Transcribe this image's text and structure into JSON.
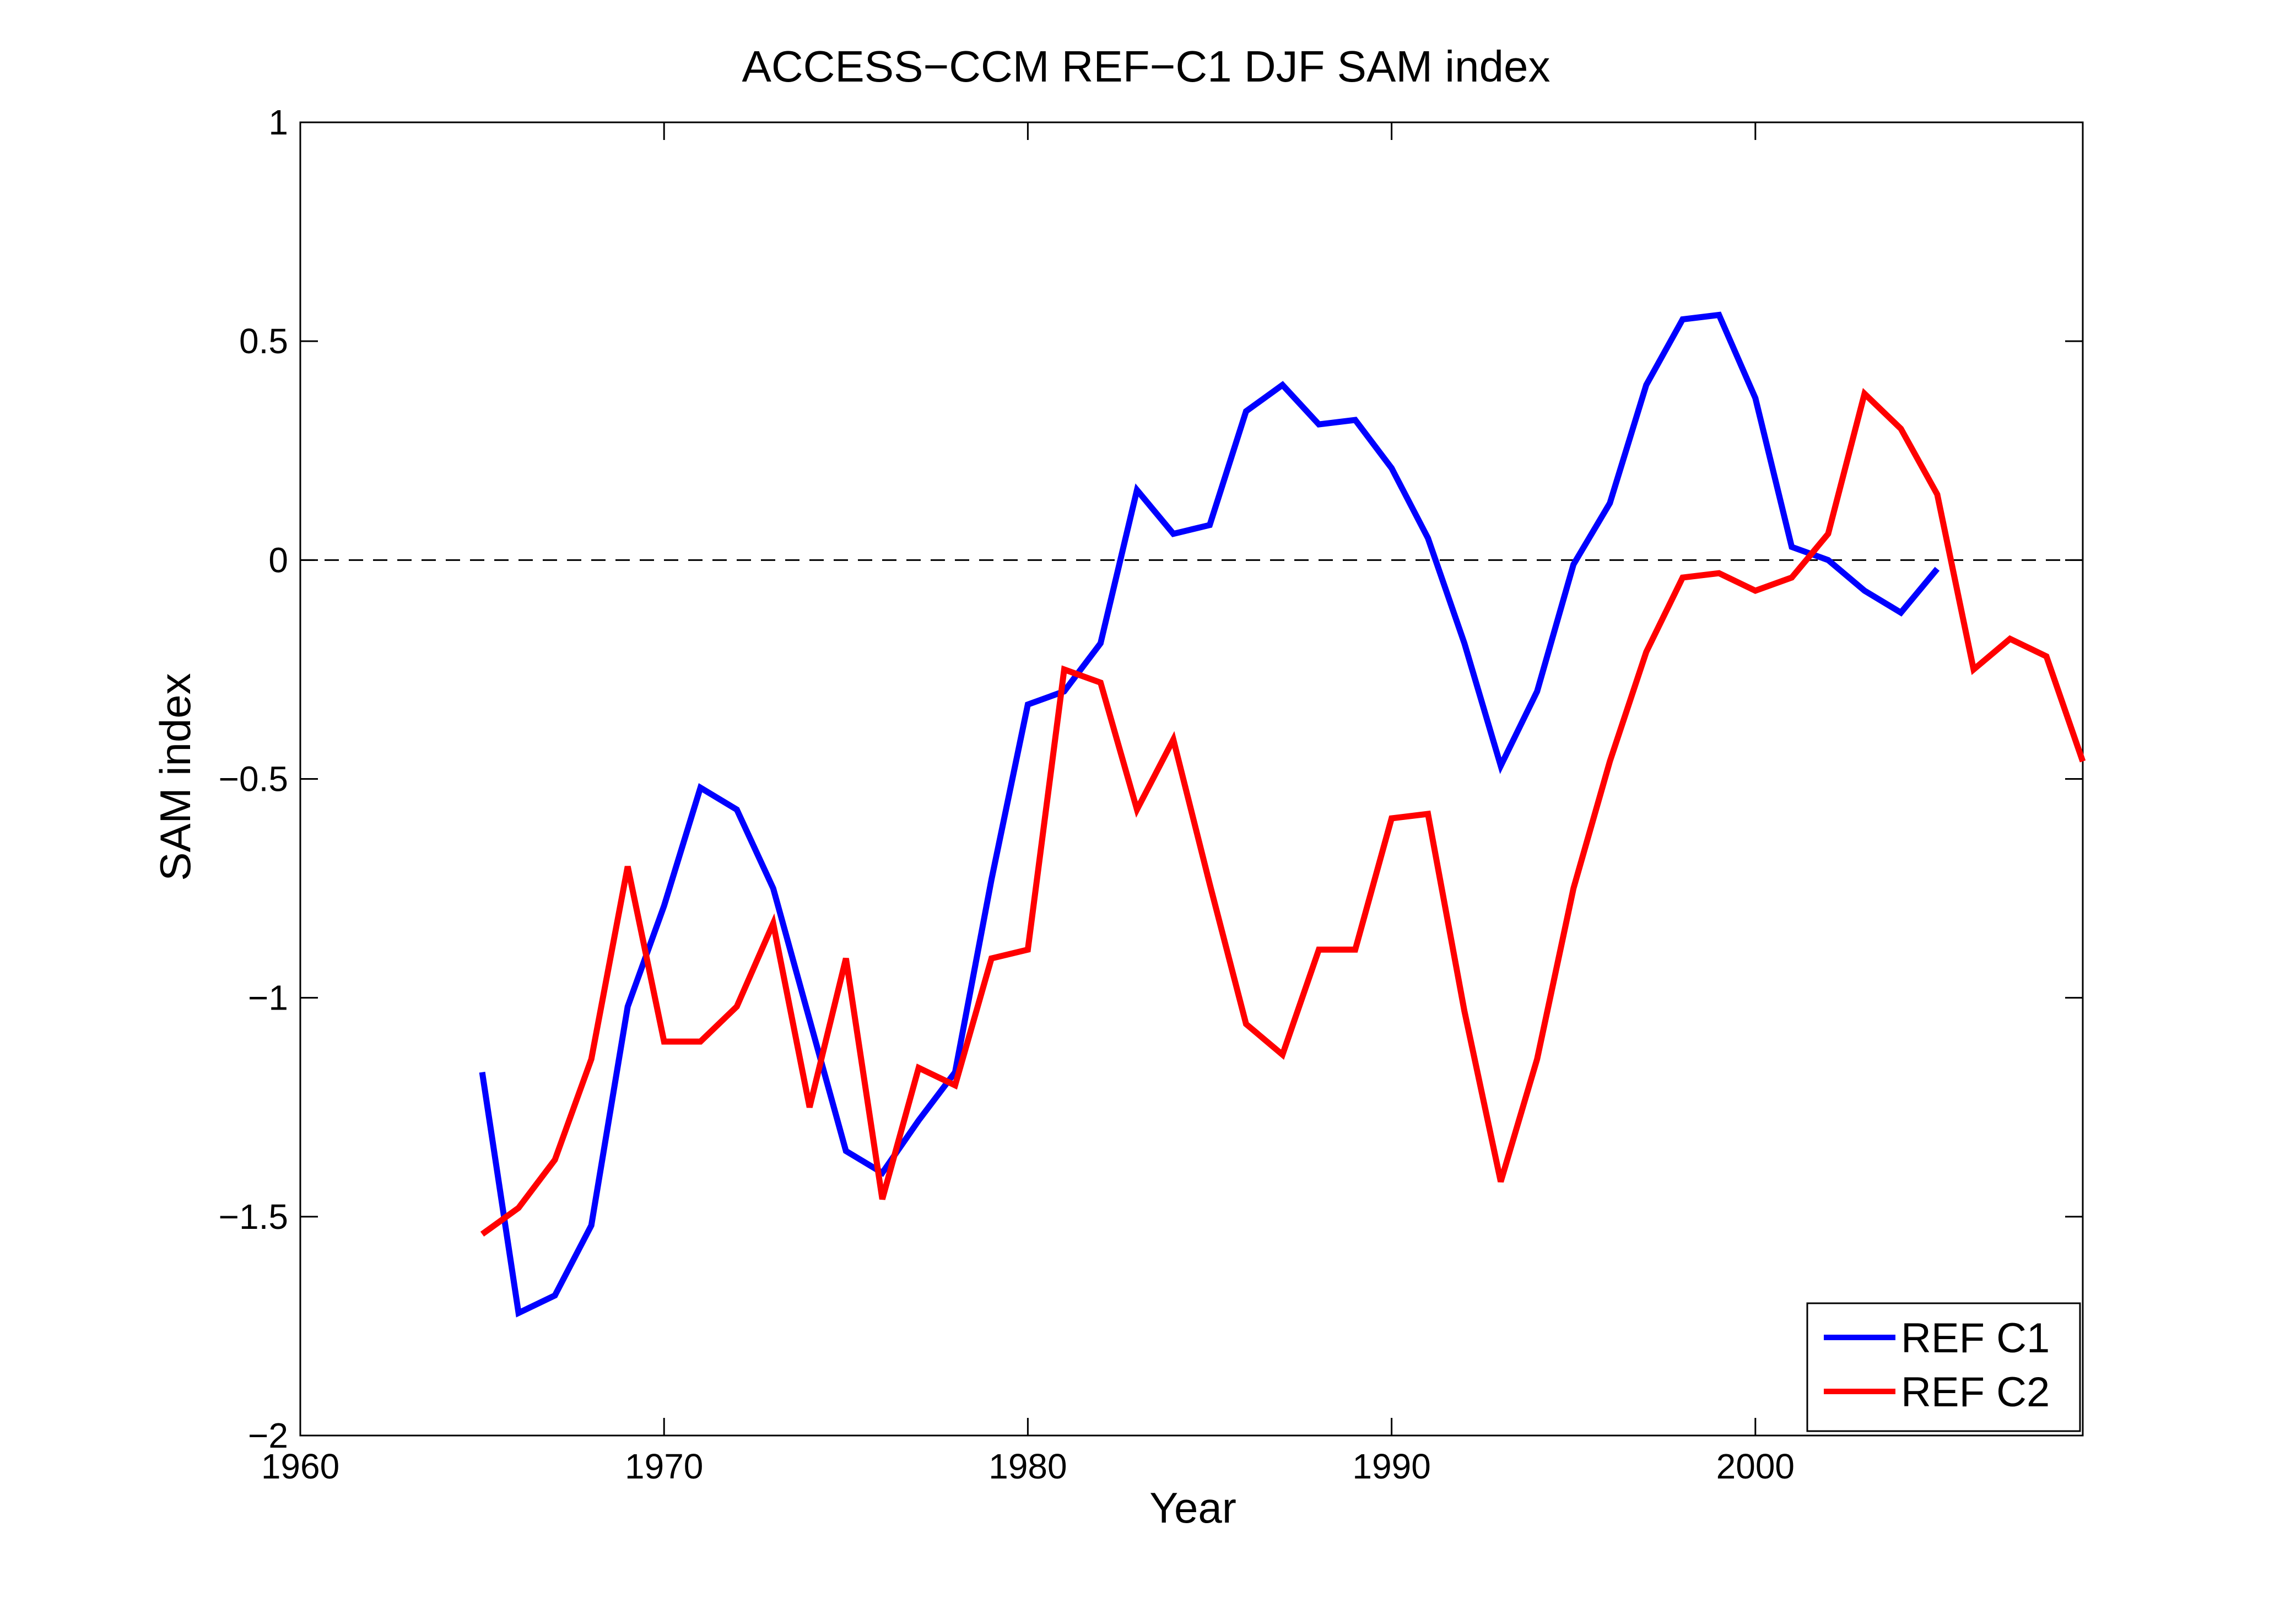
{
  "chart_data": {
    "type": "line",
    "title": "ACCESS−CCM REF−C1 DJF SAM index",
    "xlabel": "Year",
    "ylabel": "SAM index",
    "xlim": [
      1960,
      2009
    ],
    "ylim": [
      -2,
      1
    ],
    "xticks": [
      1960,
      1970,
      1980,
      1990,
      2000
    ],
    "yticks": [
      -2,
      -1.5,
      -1,
      -0.5,
      0,
      0.5,
      1
    ],
    "xtick_labels": [
      "1960",
      "1970",
      "1980",
      "1990",
      "2000"
    ],
    "ytick_labels": [
      "−2",
      "−1.5",
      "−1",
      "−0.5",
      "0",
      "0.5",
      "1"
    ],
    "grid": false,
    "reference_line": {
      "y": 0,
      "style": "dashed",
      "color": "#000000"
    },
    "legend": {
      "position": "bottom-right"
    },
    "series": [
      {
        "name": "REF C1",
        "color": "#0000ff",
        "x": [
          1965,
          1966,
          1967,
          1968,
          1969,
          1970,
          1971,
          1972,
          1973,
          1974,
          1975,
          1976,
          1977,
          1978,
          1979,
          1980,
          1981,
          1982,
          1983,
          1984,
          1985,
          1986,
          1987,
          1988,
          1989,
          1990,
          1991,
          1992,
          1993,
          1994,
          1995,
          1996,
          1997,
          1998,
          1999,
          2000,
          2001,
          2002,
          2003,
          2004,
          2005
        ],
        "values": [
          -1.17,
          -1.72,
          -1.68,
          -1.52,
          -1.02,
          -0.79,
          -0.52,
          -0.57,
          -0.75,
          -1.05,
          -1.35,
          -1.4,
          -1.28,
          -1.17,
          -0.73,
          -0.33,
          -0.3,
          -0.19,
          0.16,
          0.06,
          0.08,
          0.34,
          0.4,
          0.31,
          0.32,
          0.21,
          0.05,
          -0.19,
          -0.47,
          -0.3,
          -0.01,
          0.13,
          0.4,
          0.55,
          0.56,
          0.37,
          0.03,
          0.0,
          -0.07,
          -0.12,
          -0.02
        ]
      },
      {
        "name": "REF C2",
        "color": "#ff0000",
        "x": [
          1965,
          1966,
          1967,
          1968,
          1969,
          1970,
          1971,
          1972,
          1973,
          1974,
          1975,
          1976,
          1977,
          1978,
          1979,
          1980,
          1981,
          1982,
          1983,
          1984,
          1985,
          1986,
          1987,
          1988,
          1989,
          1990,
          1991,
          1992,
          1993,
          1994,
          1995,
          1996,
          1997,
          1998,
          1999,
          2000,
          2001,
          2002,
          2003,
          2004,
          2005,
          2006,
          2007,
          2008,
          2009
        ],
        "values": [
          -1.54,
          -1.48,
          -1.37,
          -1.14,
          -0.7,
          -1.1,
          -1.1,
          -1.02,
          -0.83,
          -1.25,
          -0.91,
          -1.46,
          -1.16,
          -1.2,
          -0.91,
          -0.89,
          -0.25,
          -0.28,
          -0.57,
          -0.41,
          -0.74,
          -1.06,
          -1.13,
          -0.89,
          -0.89,
          -0.59,
          -0.58,
          -1.03,
          -1.42,
          -1.14,
          -0.75,
          -0.46,
          -0.21,
          -0.04,
          -0.03,
          -0.07,
          -0.04,
          0.06,
          0.38,
          0.3,
          0.15,
          -0.25,
          -0.18,
          -0.22,
          -0.46
        ]
      }
    ]
  }
}
